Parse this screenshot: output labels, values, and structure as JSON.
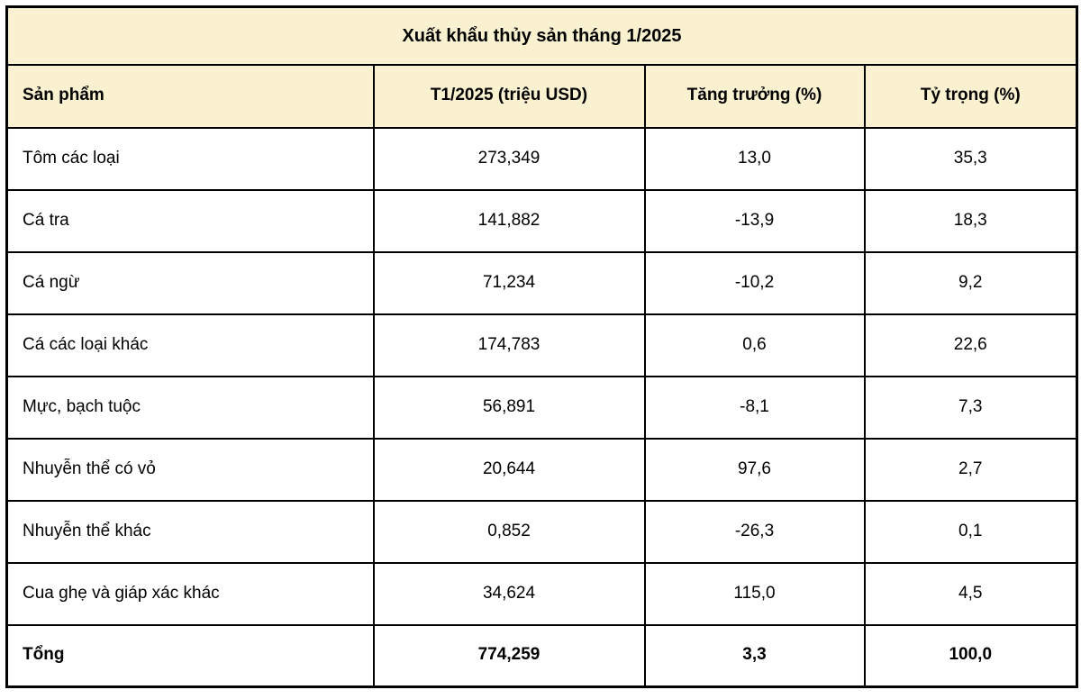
{
  "colors": {
    "band_bg": "#FAF1D0",
    "border": "#000000",
    "row_bg": "#FFFFFF",
    "text": "#000000"
  },
  "table": {
    "title": "Xuất khẩu thủy sản tháng 1/2025",
    "columns": {
      "product": "Sản phẩm",
      "value": "T1/2025 (triệu USD)",
      "growth": "Tăng trưởng (%)",
      "share": "Tỷ trọng (%)"
    },
    "rows": [
      {
        "product": "Tôm các loại",
        "value": "273,349",
        "growth": "13,0",
        "share": "35,3"
      },
      {
        "product": "Cá tra",
        "value": "141,882",
        "growth": "-13,9",
        "share": "18,3"
      },
      {
        "product": "Cá ngừ",
        "value": "71,234",
        "growth": "-10,2",
        "share": "9,2"
      },
      {
        "product": "Cá các loại khác",
        "value": "174,783",
        "growth": "0,6",
        "share": "22,6"
      },
      {
        "product": "Mực, bạch tuộc",
        "value": "56,891",
        "growth": "-8,1",
        "share": "7,3"
      },
      {
        "product": "Nhuyễn thể có vỏ",
        "value": "20,644",
        "growth": "97,6",
        "share": "2,7"
      },
      {
        "product": "Nhuyễn thể khác",
        "value": "0,852",
        "growth": "-26,3",
        "share": "0,1"
      },
      {
        "product": "Cua ghẹ và giáp xác khác",
        "value": "34,624",
        "growth": "115,0",
        "share": "4,5"
      }
    ],
    "total": {
      "product": "Tổng",
      "value": "774,259",
      "growth": "3,3",
      "share": "100,0"
    }
  }
}
